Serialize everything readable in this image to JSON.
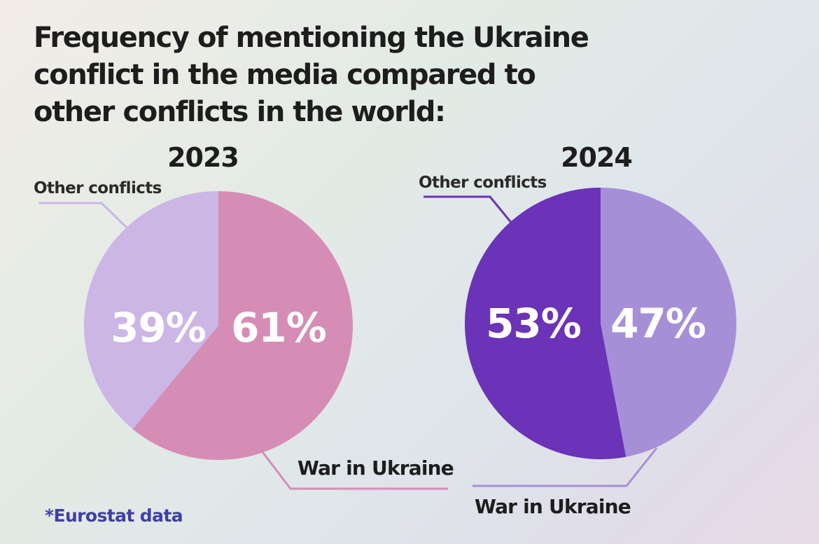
{
  "title": "Frequency of mentioning the Ukraine conflict in the media compared to other conflicts in the world:",
  "footnote": "*Eurostat data",
  "chart_data": [
    {
      "type": "pie",
      "title": "2023",
      "slices": [
        {
          "label": "Other conflicts",
          "value": 39,
          "display": "39%",
          "color": "#cbb6e6"
        },
        {
          "label": "War in Ukraine",
          "value": 61,
          "display": "61%",
          "color": "#d58db5"
        }
      ]
    },
    {
      "type": "pie",
      "title": "2024",
      "slices": [
        {
          "label": "Other conflicts",
          "value": 53,
          "display": "53%",
          "color": "#6a33b8"
        },
        {
          "label": "War in Ukraine",
          "value": 47,
          "display": "47%",
          "color": "#a68fd7"
        }
      ]
    }
  ]
}
